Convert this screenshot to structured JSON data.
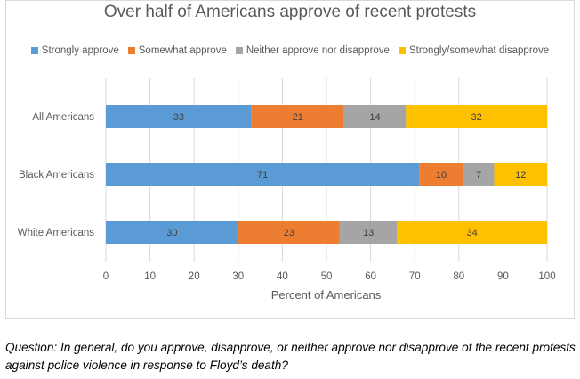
{
  "chart_data": {
    "type": "bar",
    "orientation": "horizontal",
    "stacked": true,
    "title": "Over half of Americans approve of recent protests",
    "xlabel": "Percent of Americans",
    "ylabel": "",
    "xlim": [
      0,
      100
    ],
    "xticks": [
      "0",
      "10",
      "20",
      "30",
      "40",
      "50",
      "60",
      "70",
      "80",
      "90",
      "100"
    ],
    "categories": [
      "All Americans",
      "Black Americans",
      "White Americans"
    ],
    "series": [
      {
        "name": "Strongly approve",
        "color": "#5b9bd5",
        "values": [
          33,
          71,
          30
        ]
      },
      {
        "name": "Somewhat approve",
        "color": "#ed7d31",
        "values": [
          21,
          10,
          23
        ]
      },
      {
        "name": "Neither approve nor disapprove",
        "color": "#a5a5a5",
        "values": [
          14,
          7,
          13
        ]
      },
      {
        "name": "Strongly/somewhat disapprove",
        "color": "#ffc000",
        "values": [
          32,
          12,
          34
        ]
      }
    ],
    "legend_position": "top",
    "grid": true
  },
  "footnote": "Question: In general, do you approve, disapprove, or neither approve nor disapprove of the recent protests against police violence in response to Floyd’s death?"
}
